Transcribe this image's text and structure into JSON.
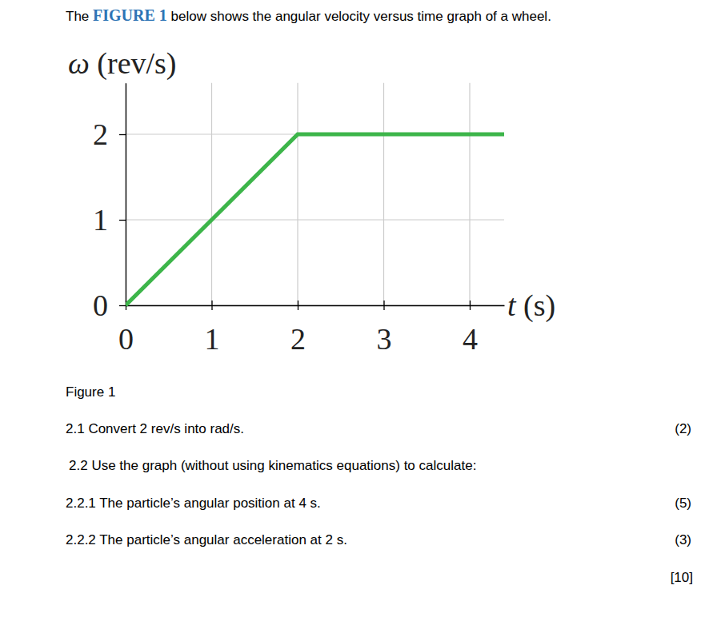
{
  "intro": {
    "before": "The ",
    "emphasis": "FIGURE 1",
    "after": " below shows the angular velocity versus time graph of a wheel."
  },
  "chart_data": {
    "type": "line",
    "y_label": "ω (rev/s)",
    "x_label": "t (s)",
    "x": [
      0,
      2,
      4.4
    ],
    "values": [
      0,
      2,
      2
    ],
    "color": "#3db54a",
    "xlim": [
      0,
      4.4
    ],
    "ylim": [
      0,
      2.6
    ],
    "xticks": [
      0,
      1,
      2,
      3,
      4
    ],
    "yticks": [
      0,
      1,
      2
    ],
    "grid": true
  },
  "caption": "Figure 1",
  "questions": [
    {
      "number": "2.1",
      "text": "Convert 2 rev/s into rad/s.",
      "marks": "(2)"
    },
    {
      "number": "2.2",
      "text": "Use the graph (without using kinematics equations) to calculate:"
    },
    {
      "number": "2.2.1",
      "text": "The particle’s angular position at 4 s.",
      "marks": "(5)"
    },
    {
      "number": "2.2.2",
      "text": "The particle’s angular acceleration at 2 s.",
      "marks": "(3)"
    }
  ],
  "total": "[10]"
}
